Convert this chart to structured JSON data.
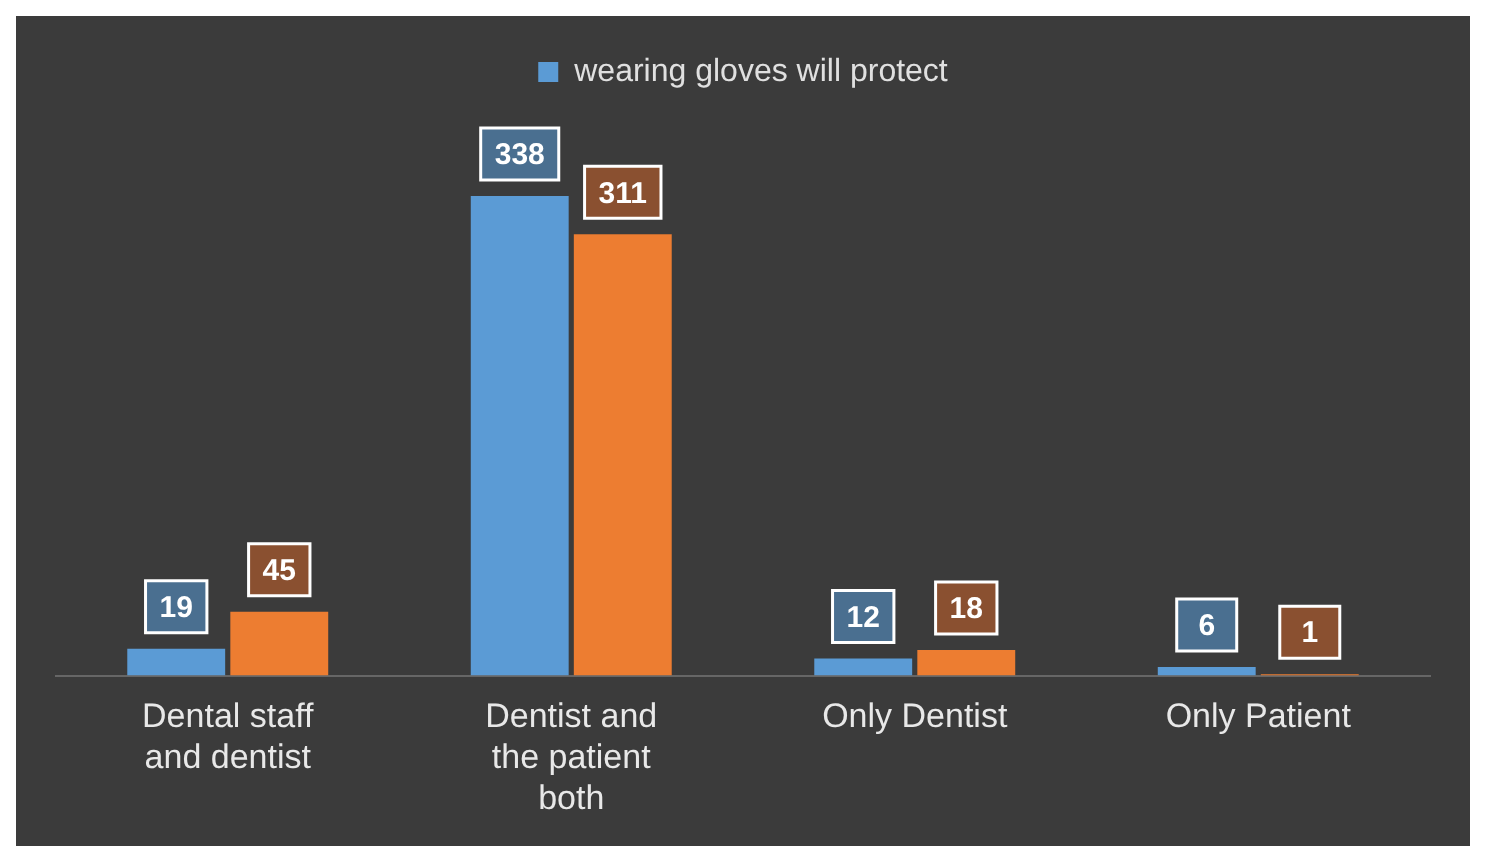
{
  "chart_data": {
    "type": "bar",
    "categories": [
      "Dental staff and dentist",
      "Dentist and the patient both",
      "Only Dentist",
      "Only Patient"
    ],
    "series": [
      {
        "name": "wearing gloves will protect",
        "color": "#5b9bd5",
        "values": [
          19,
          338,
          12,
          6
        ]
      },
      {
        "color": "#ed7d31",
        "values": [
          45,
          311,
          18,
          1
        ]
      }
    ],
    "data_labels": true,
    "legend": "top",
    "grid": false
  }
}
